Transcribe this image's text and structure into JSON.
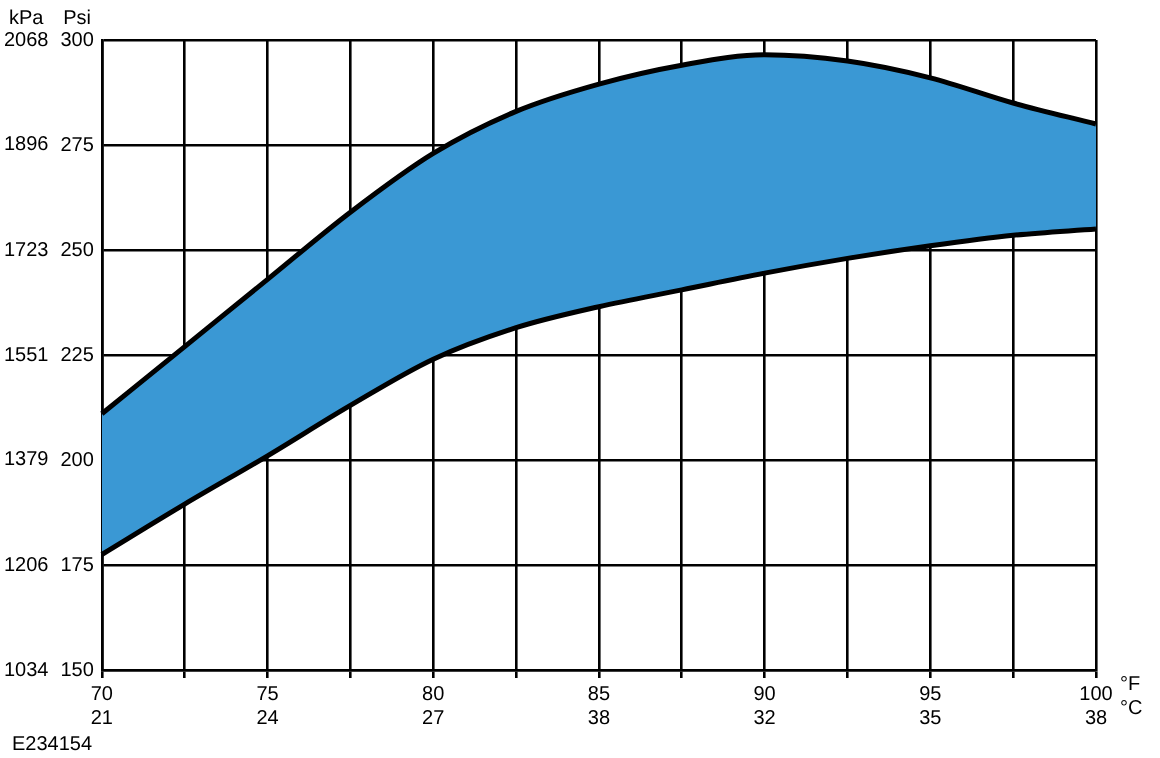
{
  "chart_data": {
    "type": "area",
    "xlabel": "°F\n°C",
    "ylabel": "Psi",
    "y2label": "kPa",
    "annotations": [
      "E234154"
    ],
    "categories": [
      "70\n21",
      null,
      "75\n24",
      null,
      "80\n27",
      null,
      "85\n38",
      null,
      "90\n32",
      null,
      "95\n35",
      null,
      "100\n38"
    ],
    "series": [
      {
        "type": "line",
        "color": "#000000",
        "values": [
          177.5,
          189.5,
          201,
          213,
          224,
          231.5,
          236.5,
          240.5,
          244.5,
          248,
          251,
          253.5,
          255
        ]
      },
      {
        "color": "#3a98d4",
        "values": [
          211,
          227,
          243,
          259,
          273,
          283,
          289.5,
          294,
          296.5,
          295,
          291,
          285,
          280
        ]
      }
    ],
    "ylim": [
      150,
      300
    ],
    "yticks": [
      150,
      175,
      200,
      225,
      250,
      275,
      300
    ],
    "y2lim": [
      1034,
      2068
    ],
    "y2ticks": [
      1034,
      1206,
      1379,
      1551,
      1723,
      1896,
      2068
    ],
    "grid": true,
    "legend": false,
    "marker": "none",
    "line_style": "solid"
  }
}
